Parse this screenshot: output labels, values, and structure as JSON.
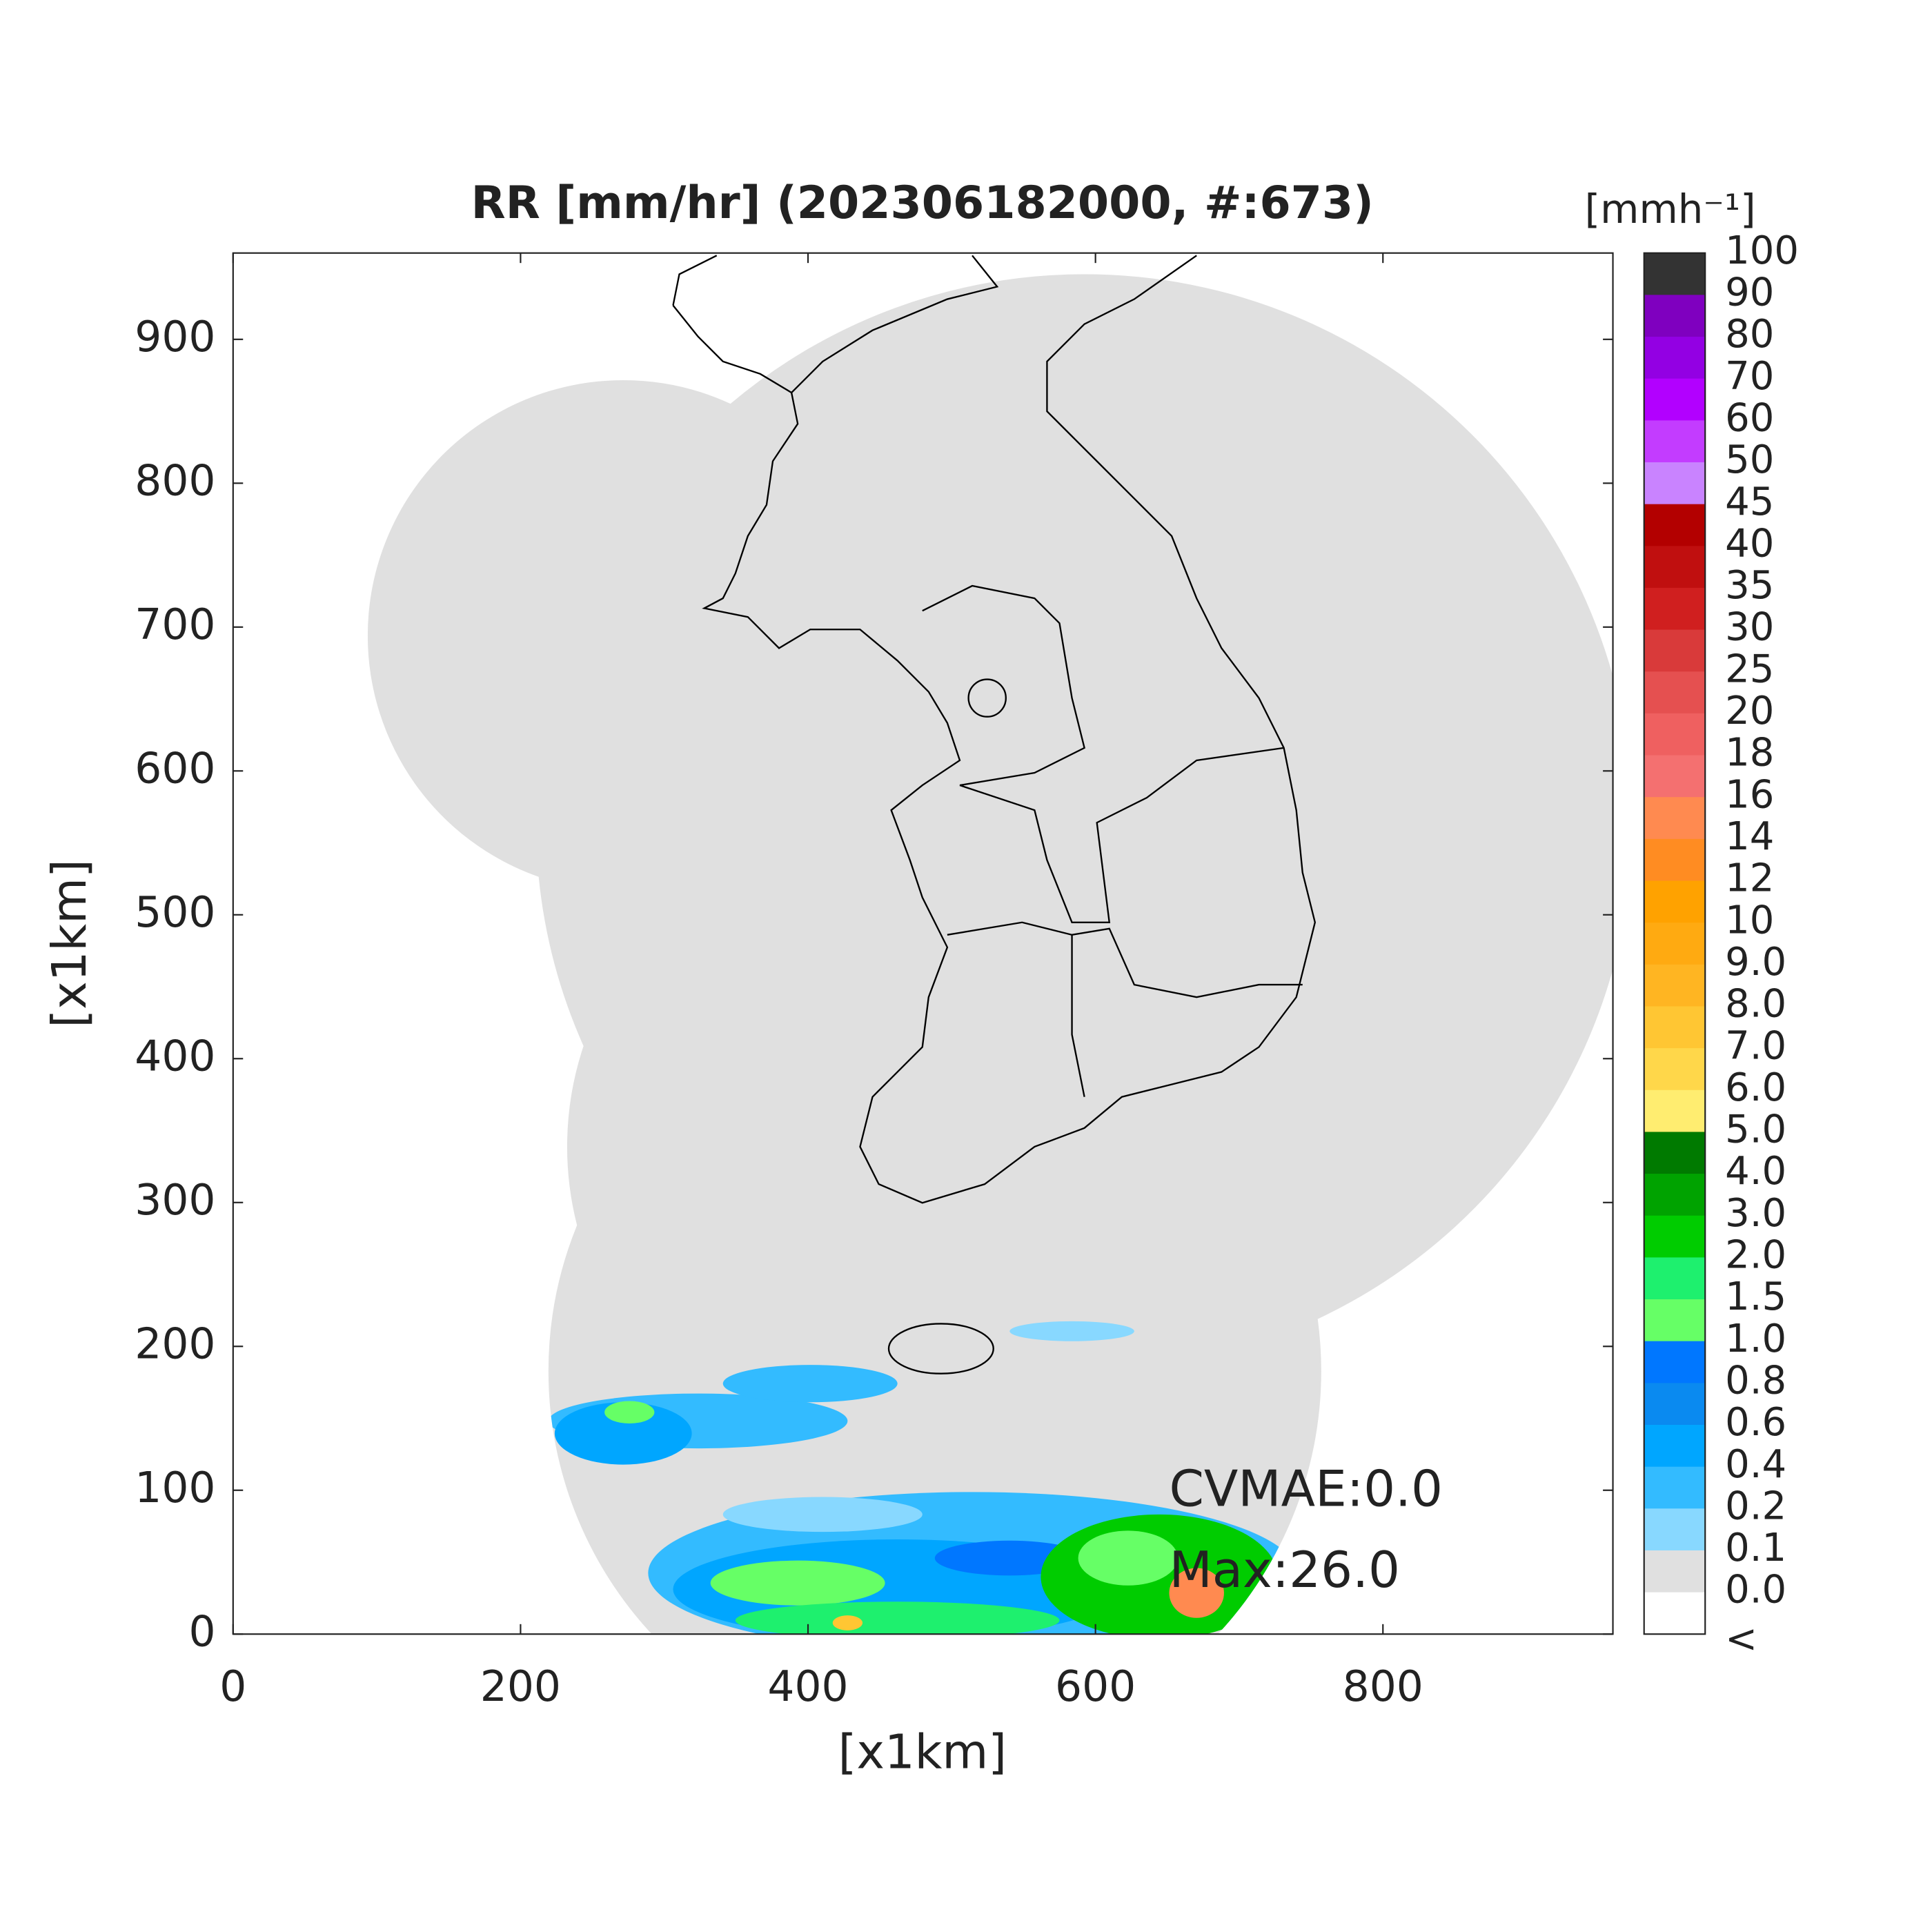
{
  "chart_data": {
    "type": "map",
    "title": "RR [mm/hr] (202306182000, #:673)",
    "xlabel": "[x1km]",
    "ylabel": "[x1km]",
    "xlim": [
      0,
      960
    ],
    "ylim": [
      0,
      960
    ],
    "xticks": [
      0,
      200,
      400,
      600,
      800
    ],
    "yticks": [
      0,
      100,
      200,
      300,
      400,
      500,
      600,
      700,
      800,
      900
    ],
    "annotations": [
      "CVMAE:0.0",
      "Max:26.0"
    ],
    "colorbar": {
      "title": "[mmh⁻¹]",
      "labels": [
        "100",
        "90",
        "80",
        "70",
        "60",
        "50",
        "45",
        "40",
        "35",
        "30",
        "25",
        "20",
        "18",
        "16",
        "14",
        "12",
        "10",
        "9.0",
        "8.0",
        "7.0",
        "6.0",
        "5.0",
        "4.0",
        "3.0",
        "2.0",
        "1.5",
        "1.0",
        "0.8",
        "0.6",
        "0.4",
        "0.2",
        "0.1",
        "0.0",
        "<"
      ],
      "colors": [
        "#333333",
        "#7f00bf",
        "#9300e3",
        "#b200ff",
        "#c33cff",
        "#c983ff",
        "#b30000",
        "#c00f0f",
        "#d01f1f",
        "#d93a3a",
        "#e55050",
        "#ef6060",
        "#f47070",
        "#ff8a50",
        "#ff8c22",
        "#ffa200",
        "#ffaa11",
        "#ffb522",
        "#ffc633",
        "#ffd74a",
        "#ffed70",
        "#007a00",
        "#00a300",
        "#00cc00",
        "#1ef06e",
        "#66ff66",
        "#0077ff",
        "#0a8af0",
        "#00a6ff",
        "#33bbff",
        "#88d8ff",
        "#e0e0e0",
        "#ffffff"
      ]
    }
  }
}
